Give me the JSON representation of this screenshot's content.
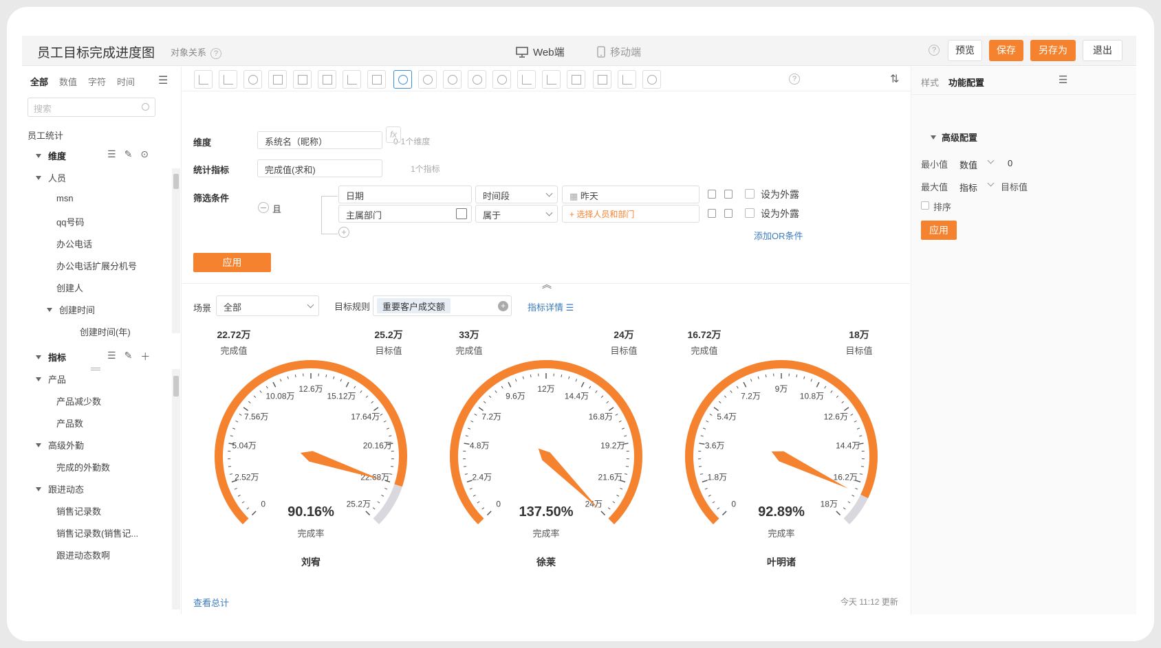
{
  "header": {
    "title": "员工目标完成进度图",
    "object_relation": "对象关系",
    "device_web": "Web端",
    "device_mobile": "移动端",
    "btn_preview": "预览",
    "btn_save": "保存",
    "btn_save_as": "另存为",
    "btn_exit": "退出",
    "help": "?"
  },
  "left": {
    "tabs": [
      "全部",
      "数值",
      "字符",
      "时间"
    ],
    "search_placeholder": "搜索",
    "group_title": "员工统计",
    "dimension_label": "维度",
    "dimension_items": [
      "人员",
      "msn",
      "qq号码",
      "办公电话",
      "办公电话扩展分机号",
      "创建人",
      "创建时间",
      "创建时间(年)"
    ],
    "metric_label": "指标",
    "metric_items": [
      "产品",
      "产品减少数",
      "产品数",
      "高级外勤",
      "完成的外勤数",
      "跟进动态",
      "销售记录数",
      "销售记录数(销售记...",
      "跟进动态数啊"
    ]
  },
  "config": {
    "dimension_label": "维度",
    "dimension_value": "系统名（昵称）",
    "dimension_hint": "0-1个维度",
    "metric_label": "统计指标",
    "metric_value": "完成值(求和)",
    "metric_hint": "1个指标",
    "fx": "fx",
    "filter_label": "筛选条件",
    "and_label": "且",
    "filter1_field": "日期",
    "filter1_op": "时间段",
    "filter1_value": "昨天",
    "filter2_field": "主属部门",
    "filter2_op": "属于",
    "filter2_value": "+ 选择人员和部门",
    "expose_label": "设为外露",
    "add_or": "添加OR条件",
    "apply": "应用"
  },
  "scene": {
    "scene_label": "场景",
    "scene_value": "全部",
    "rule_label": "目标规则",
    "rule_value": "重要客户成交额",
    "detail_link": "指标详情"
  },
  "gauges": [
    {
      "name": "刘宥",
      "complete_value": "22.72万",
      "complete_label": "完成值",
      "target_value": "25.2万",
      "target_label": "目标值",
      "percent": "90.16%",
      "rate_label": "完成率",
      "ratio": 0.9016,
      "ticks": [
        "0",
        "2.52万",
        "5.04万",
        "7.56万",
        "10.08万",
        "12.6万",
        "15.12万",
        "17.64万",
        "20.16万",
        "22.68万",
        "25.2万"
      ]
    },
    {
      "name": "徐莱",
      "complete_value": "33万",
      "complete_label": "完成值",
      "target_value": "24万",
      "target_label": "目标值",
      "percent": "137.50%",
      "rate_label": "完成率",
      "ratio": 1.375,
      "ticks": [
        "0",
        "2.4万",
        "4.8万",
        "7.2万",
        "9.6万",
        "12万",
        "14.4万",
        "16.8万",
        "19.2万",
        "21.6万",
        "24万"
      ]
    },
    {
      "name": "叶明诸",
      "complete_value": "16.72万",
      "complete_label": "完成值",
      "target_value": "18万",
      "target_label": "目标值",
      "percent": "92.89%",
      "rate_label": "完成率",
      "ratio": 0.9289,
      "ticks": [
        "0",
        "1.8万",
        "3.6万",
        "5.4万",
        "7.2万",
        "9万",
        "10.8万",
        "12.6万",
        "14.4万",
        "16.2万",
        "18万"
      ]
    }
  ],
  "footer": {
    "view_total": "查看总计",
    "update_time": "今天 11:12 更新"
  },
  "right": {
    "tab_style": "样式",
    "tab_function": "功能配置",
    "advanced": "高级配置",
    "min_label": "最小值",
    "min_type": "数值",
    "min_value": "0",
    "max_label": "最大值",
    "max_type": "指标",
    "max_value": "目标值",
    "sort_label": "排序",
    "apply": "应用"
  },
  "colors": {
    "accent": "#f5822e",
    "gauge_rest": "#d8d8de",
    "link": "#3b7bbf"
  }
}
